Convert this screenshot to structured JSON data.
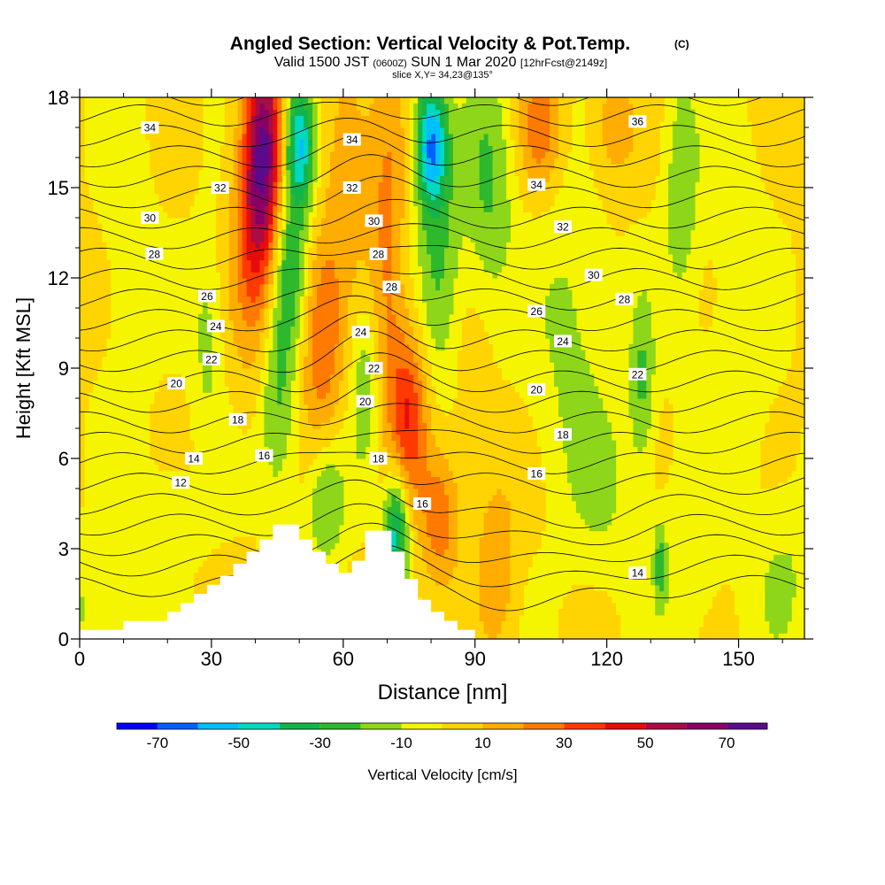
{
  "chart_data": {
    "type": "heatmap",
    "title": "Angled Section: Vertical Velocity & Pot.Temp.",
    "title_suffix": "(C)",
    "subtitle": {
      "prefix": "Valid 1500 JST",
      "utc": "(0600Z)",
      "date": "SUN 1 Mar 2020",
      "forecast": "[12hrFcst@2149z]"
    },
    "slice_label": "slice X,Y= 34,23@135°",
    "xlabel": "Distance [nm]",
    "ylabel": "Height [Kft MSL]",
    "xlim": [
      0,
      165
    ],
    "ylim": [
      0,
      18
    ],
    "x_ticks": [
      0,
      30,
      60,
      90,
      120,
      150
    ],
    "y_ticks": [
      0,
      3,
      6,
      9,
      12,
      15,
      18
    ],
    "terrain": {
      "x": [
        0,
        10,
        10,
        20,
        20,
        23,
        23,
        26,
        26,
        29,
        29,
        32,
        32,
        35,
        35,
        38,
        38,
        41,
        41,
        44,
        44,
        50,
        50,
        53,
        53,
        56,
        56,
        59,
        59,
        62,
        62,
        65,
        65,
        71,
        71,
        74,
        74,
        77,
        77,
        80,
        80,
        83,
        83,
        86,
        86,
        90
      ],
      "z": [
        0.3,
        0.3,
        0.6,
        0.6,
        0.9,
        0.9,
        1.2,
        1.2,
        1.5,
        1.5,
        1.8,
        1.8,
        2.1,
        2.1,
        2.5,
        2.5,
        2.9,
        2.9,
        3.3,
        3.3,
        3.8,
        3.8,
        3.3,
        3.3,
        2.9,
        2.9,
        2.5,
        2.5,
        2.2,
        2.2,
        2.6,
        2.6,
        3.6,
        3.6,
        2.9,
        2.9,
        2.0,
        2.0,
        1.3,
        1.3,
        0.9,
        0.9,
        0.6,
        0.6,
        0.3,
        0.3
      ]
    },
    "velocity_features": [
      {
        "x": 0,
        "z": 1.0,
        "sx": 8,
        "sz": 1.4,
        "w": -12
      },
      {
        "x": 20,
        "z": 4.2,
        "sx": 5,
        "sz": 1.0,
        "w": -12
      },
      {
        "x": 11,
        "z": 12,
        "sx": 4,
        "sz": 4.5,
        "w": -8
      },
      {
        "x": 29,
        "z": 10,
        "sx": 2.5,
        "sz": 2.5,
        "w": -14
      },
      {
        "x": 42,
        "z": 16.5,
        "sx": 3,
        "sz": 2.5,
        "w": 55
      },
      {
        "x": 40,
        "z": 13.5,
        "sx": 3.5,
        "sz": 3,
        "w": 34
      },
      {
        "x": 55,
        "z": 10,
        "sx": 3.5,
        "sz": 2.5,
        "w": 28
      },
      {
        "x": 50,
        "z": 16.5,
        "sx": 2.5,
        "sz": 1.5,
        "w": -55
      },
      {
        "x": 48,
        "z": 12.5,
        "sx": 3,
        "sz": 2,
        "w": -28
      },
      {
        "x": 45,
        "z": 8,
        "sx": 3,
        "sz": 2.5,
        "w": -24
      },
      {
        "x": 56,
        "z": 4.5,
        "sx": 3,
        "sz": 1.5,
        "w": -22
      },
      {
        "x": 61,
        "z": 16,
        "sx": 3.5,
        "sz": 2.5,
        "w": 18
      },
      {
        "x": 70,
        "z": 13,
        "sx": 3,
        "sz": 4.5,
        "w": 22
      },
      {
        "x": 75,
        "z": 7.5,
        "sx": 3,
        "sz": 2,
        "w": 36
      },
      {
        "x": 82,
        "z": 4,
        "sx": 3,
        "sz": 1.5,
        "w": 26
      },
      {
        "x": 80,
        "z": 16.5,
        "sx": 2.5,
        "sz": 1.5,
        "w": -58
      },
      {
        "x": 82,
        "z": 12.5,
        "sx": 3.5,
        "sz": 3,
        "w": -22
      },
      {
        "x": 72,
        "z": 3.5,
        "sx": 2,
        "sz": 1.5,
        "w": -48
      },
      {
        "x": 65,
        "z": 8.5,
        "sx": 2.5,
        "sz": 2,
        "w": -20
      },
      {
        "x": 93,
        "z": 15,
        "sx": 4,
        "sz": 3,
        "w": -22
      },
      {
        "x": 89,
        "z": 8,
        "sx": 4,
        "sz": 3,
        "w": 6
      },
      {
        "x": 95,
        "z": 2.5,
        "sx": 3,
        "sz": 2,
        "w": 18
      },
      {
        "x": 105,
        "z": 17,
        "sx": 3.5,
        "sz": 1.5,
        "w": 25
      },
      {
        "x": 112,
        "z": 10,
        "sx": 6,
        "sz": 4,
        "w": -14
      },
      {
        "x": 120,
        "z": 5,
        "sx": 5,
        "sz": 2,
        "w": -10
      },
      {
        "x": 121,
        "z": 17,
        "sx": 4,
        "sz": 1.5,
        "w": 16
      },
      {
        "x": 128,
        "z": 8.5,
        "sx": 2,
        "sz": 2,
        "w": -22
      },
      {
        "x": 137,
        "z": 15,
        "sx": 3,
        "sz": 3,
        "w": -18
      },
      {
        "x": 150,
        "z": 13,
        "sx": 4,
        "sz": 3,
        "w": -10
      },
      {
        "x": 148,
        "z": 7.5,
        "sx": 6,
        "sz": 2,
        "w": -8
      },
      {
        "x": 138,
        "z": 2.5,
        "sx": 5,
        "sz": 2,
        "w": -10
      },
      {
        "x": 160,
        "z": 2,
        "sx": 5,
        "sz": 2,
        "w": -12
      },
      {
        "x": 132,
        "z": 2.5,
        "sx": 1,
        "sz": 1,
        "w": -22
      }
    ],
    "contour_levels": [
      12,
      14,
      16,
      18,
      20,
      22,
      24,
      26,
      28,
      30,
      32,
      34,
      36
    ],
    "contour_labels": [
      {
        "text": "34",
        "x": 16,
        "z": 17.0
      },
      {
        "text": "32",
        "x": 32,
        "z": 15.0
      },
      {
        "text": "30",
        "x": 16,
        "z": 14.0
      },
      {
        "text": "28",
        "x": 17,
        "z": 12.8
      },
      {
        "text": "26",
        "x": 29,
        "z": 11.4
      },
      {
        "text": "24",
        "x": 31,
        "z": 10.4
      },
      {
        "text": "22",
        "x": 30,
        "z": 9.3
      },
      {
        "text": "20",
        "x": 22,
        "z": 8.5
      },
      {
        "text": "18",
        "x": 36,
        "z": 7.3
      },
      {
        "text": "14",
        "x": 26,
        "z": 6.0
      },
      {
        "text": "12",
        "x": 23,
        "z": 5.2
      },
      {
        "text": "16",
        "x": 42,
        "z": 6.1
      },
      {
        "text": "34",
        "x": 62,
        "z": 16.6
      },
      {
        "text": "32",
        "x": 62,
        "z": 15.0
      },
      {
        "text": "30",
        "x": 67,
        "z": 13.9
      },
      {
        "text": "28",
        "x": 68,
        "z": 12.8
      },
      {
        "text": "28",
        "x": 71,
        "z": 11.7
      },
      {
        "text": "24",
        "x": 64,
        "z": 10.2
      },
      {
        "text": "22",
        "x": 67,
        "z": 9.0
      },
      {
        "text": "20",
        "x": 65,
        "z": 7.9
      },
      {
        "text": "18",
        "x": 68,
        "z": 6.0
      },
      {
        "text": "16",
        "x": 78,
        "z": 4.5
      },
      {
        "text": "34",
        "x": 104,
        "z": 15.1
      },
      {
        "text": "32",
        "x": 110,
        "z": 13.7
      },
      {
        "text": "30",
        "x": 117,
        "z": 12.1
      },
      {
        "text": "26",
        "x": 104,
        "z": 10.9
      },
      {
        "text": "24",
        "x": 110,
        "z": 9.9
      },
      {
        "text": "20",
        "x": 104,
        "z": 8.3
      },
      {
        "text": "18",
        "x": 110,
        "z": 6.8
      },
      {
        "text": "16",
        "x": 104,
        "z": 5.5
      },
      {
        "text": "28",
        "x": 124,
        "z": 11.3
      },
      {
        "text": "22",
        "x": 127,
        "z": 8.8
      },
      {
        "text": "36",
        "x": 127,
        "z": 17.2
      },
      {
        "text": "14",
        "x": 127,
        "z": 2.2
      }
    ],
    "colorbar": {
      "label": "Vertical Velocity [cm/s]",
      "bounds": [
        -80,
        -70,
        -60,
        -50,
        -40,
        -30,
        -20,
        -10,
        0,
        10,
        20,
        30,
        40,
        50,
        60,
        70,
        80
      ],
      "colors": [
        "#0000ff",
        "#0060ff",
        "#00bfff",
        "#00d8c0",
        "#12b54a",
        "#2eb82e",
        "#8ed61a",
        "#f5f500",
        "#ffd400",
        "#ffad00",
        "#ff7a00",
        "#ff3a00",
        "#e60c0c",
        "#aa0c44",
        "#880066",
        "#5c0a8c"
      ],
      "tick_labels": [
        "-70",
        "-50",
        "-30",
        "-10",
        "10",
        "30",
        "50",
        "70"
      ]
    }
  }
}
